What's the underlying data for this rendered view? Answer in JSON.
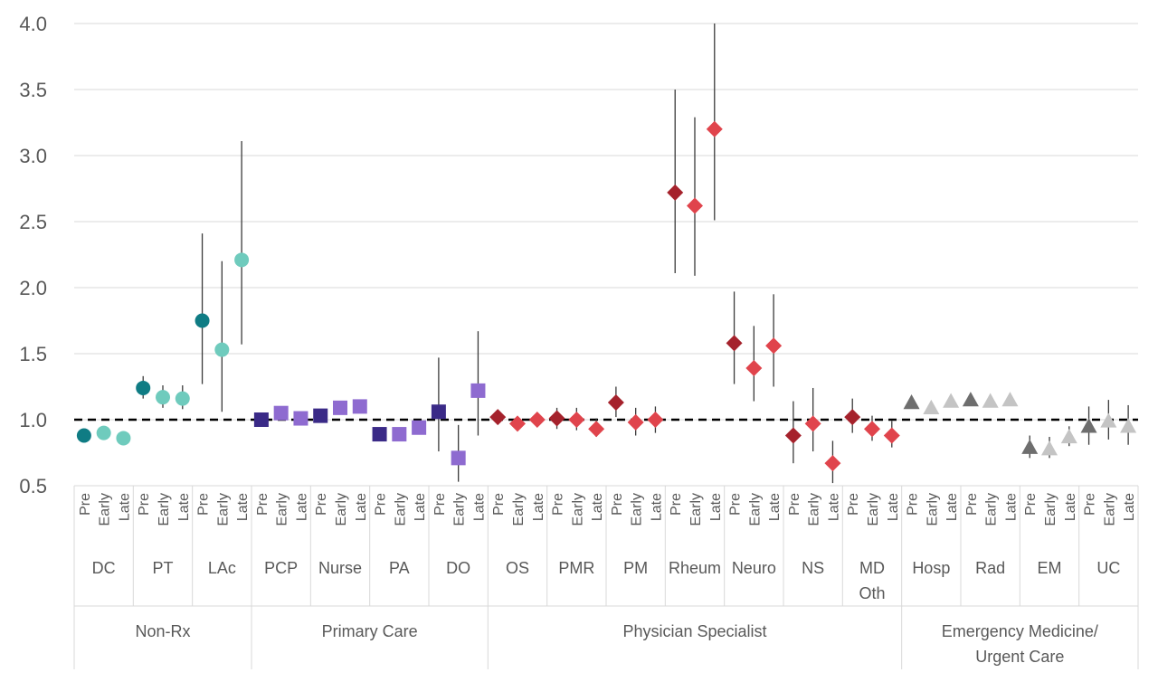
{
  "chart_data": {
    "type": "scatter",
    "title": "",
    "xlabel": "",
    "ylabel": "",
    "ylim": [
      0.5,
      4.0
    ],
    "yticks": [
      "0.5",
      "1.0",
      "1.5",
      "2.0",
      "2.5",
      "3.0",
      "3.5",
      "4.0"
    ],
    "reference_line": 1.0,
    "grid": "horizontal",
    "error_bars": true,
    "phases": [
      "Pre",
      "Early",
      "Late"
    ],
    "groups": [
      {
        "label": "Non-Rx",
        "marker": "circle",
        "color_dark": "#0f7c84",
        "color_light": "#6fcbbd",
        "categories": [
          {
            "label": "DC",
            "values": [
              0.88,
              0.9,
              0.86
            ],
            "ci": [
              null,
              null,
              null
            ]
          },
          {
            "label": "PT",
            "values": [
              1.24,
              1.17,
              1.16
            ],
            "ci": [
              [
                1.16,
                1.33
              ],
              [
                1.09,
                1.26
              ],
              [
                1.08,
                1.26
              ]
            ]
          },
          {
            "label": "LAc",
            "values": [
              1.75,
              1.53,
              2.21
            ],
            "ci": [
              [
                1.27,
                2.41
              ],
              [
                1.06,
                2.2
              ],
              [
                1.57,
                3.11
              ]
            ]
          }
        ]
      },
      {
        "label": "Primary Care",
        "marker": "square",
        "color_dark": "#3a2a87",
        "color_light": "#8e6bd0",
        "categories": [
          {
            "label": "PCP",
            "values": [
              1.0,
              1.05,
              1.01
            ],
            "ci": [
              null,
              null,
              null
            ]
          },
          {
            "label": "Nurse",
            "values": [
              1.03,
              1.09,
              1.1
            ],
            "ci": [
              null,
              null,
              null
            ]
          },
          {
            "label": "PA",
            "values": [
              0.89,
              0.89,
              0.94
            ],
            "ci": [
              null,
              null,
              null
            ]
          },
          {
            "label": "DO",
            "values": [
              1.06,
              0.71,
              1.22
            ],
            "ci": [
              [
                0.76,
                1.47
              ],
              [
                0.53,
                0.96
              ],
              [
                0.88,
                1.67
              ]
            ]
          }
        ]
      },
      {
        "label": "Physician Specialist",
        "marker": "diamond",
        "color_dark": "#a5222c",
        "color_light": "#e0444c",
        "categories": [
          {
            "label": "OS",
            "values": [
              1.02,
              0.97,
              1.0
            ],
            "ci": [
              null,
              null,
              null
            ]
          },
          {
            "label": "PMR",
            "values": [
              1.01,
              1.0,
              0.93
            ],
            "ci": [
              [
                0.93,
                1.09
              ],
              [
                0.92,
                1.09
              ],
              [
                0.87,
                1.01
              ]
            ]
          },
          {
            "label": "PM",
            "values": [
              1.13,
              0.98,
              1.0
            ],
            "ci": [
              [
                1.02,
                1.25
              ],
              [
                0.88,
                1.09
              ],
              [
                0.9,
                1.1
              ]
            ]
          },
          {
            "label": "Rheum",
            "values": [
              2.72,
              2.62,
              3.2
            ],
            "ci": [
              [
                2.11,
                3.5
              ],
              [
                2.09,
                3.29
              ],
              [
                2.51,
                4.0
              ]
            ]
          },
          {
            "label": "Neuro",
            "values": [
              1.58,
              1.39,
              1.56
            ],
            "ci": [
              [
                1.27,
                1.97
              ],
              [
                1.14,
                1.71
              ],
              [
                1.25,
                1.95
              ]
            ]
          },
          {
            "label": "NS",
            "values": [
              0.88,
              0.97,
              0.67
            ],
            "ci": [
              [
                0.67,
                1.14
              ],
              [
                0.76,
                1.24
              ],
              [
                0.52,
                0.84
              ]
            ]
          },
          {
            "label": "MD Oth",
            "values": [
              1.02,
              0.93,
              0.88
            ],
            "ci": [
              [
                0.9,
                1.16
              ],
              [
                0.84,
                1.03
              ],
              [
                0.79,
                0.99
              ]
            ]
          }
        ]
      },
      {
        "label": "Emergency Medicine/ Urgent Care",
        "marker": "triangle",
        "color_dark": "#6e6e6e",
        "color_light": "#c4c4c4",
        "categories": [
          {
            "label": "Hosp",
            "values": [
              1.13,
              1.09,
              1.14
            ],
            "ci": [
              null,
              null,
              null
            ]
          },
          {
            "label": "Rad",
            "values": [
              1.15,
              1.14,
              1.15
            ],
            "ci": [
              null,
              null,
              null
            ]
          },
          {
            "label": "EM",
            "values": [
              0.79,
              0.78,
              0.87
            ],
            "ci": [
              [
                0.71,
                0.88
              ],
              [
                0.71,
                0.87
              ],
              [
                0.8,
                0.95
              ]
            ]
          },
          {
            "label": "UC",
            "values": [
              0.95,
              0.99,
              0.95
            ],
            "ci": [
              [
                0.81,
                1.1
              ],
              [
                0.85,
                1.15
              ],
              [
                0.81,
                1.11
              ]
            ]
          }
        ]
      }
    ]
  }
}
